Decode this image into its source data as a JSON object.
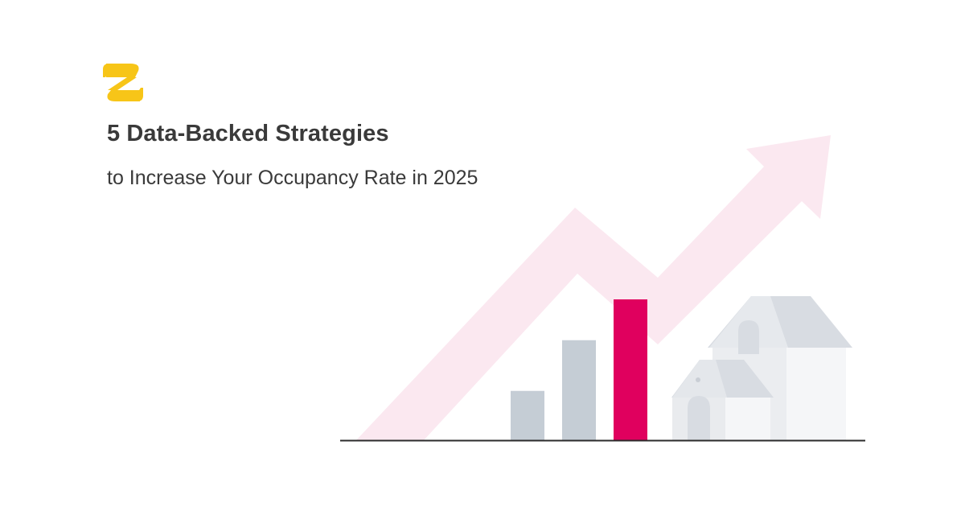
{
  "brand": {
    "logo_icon": "z-monogram-logo",
    "color": "#F7C518"
  },
  "hero": {
    "headline": "5 Data-Backed Strategies",
    "subheadline": "to Increase Your Occupancy Rate in 2025"
  },
  "illustration": {
    "arrow_icon": "growth-arrow-icon",
    "house_icons": [
      "large-house-icon",
      "small-house-icon"
    ],
    "bars": [
      {
        "level": 0.35,
        "color": "#C5CDD5"
      },
      {
        "level": 0.71,
        "color": "#C5CDD5"
      },
      {
        "level": 1.0,
        "color": "#E0005E"
      }
    ],
    "colors": {
      "arrow": "#FBE8F0",
      "baseline": "#2B2B2B",
      "house_wall": "#EEF0F3",
      "house_roof": "#D8DCE2"
    }
  }
}
